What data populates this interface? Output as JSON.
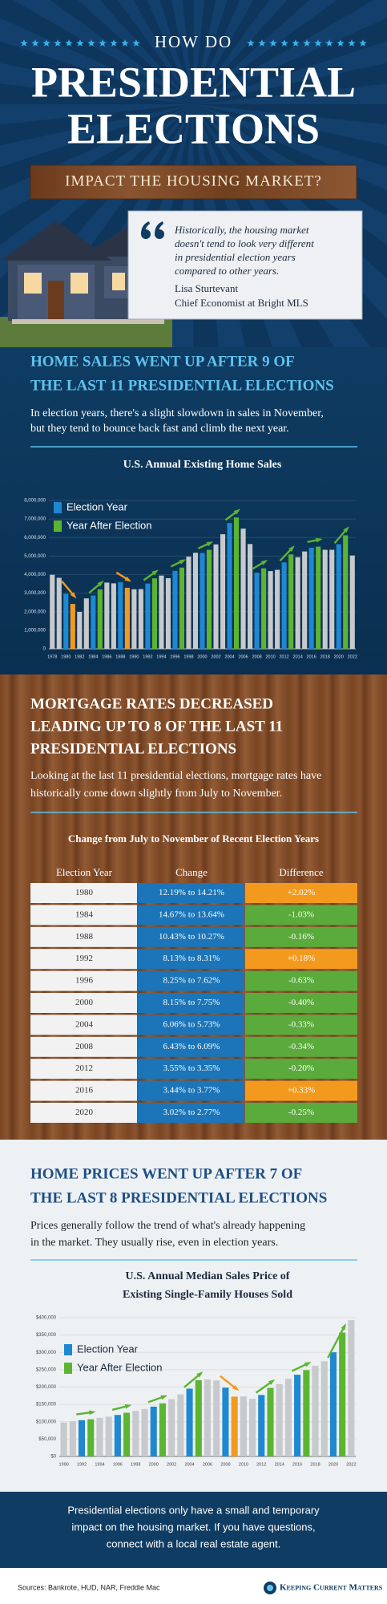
{
  "header": {
    "kicker": "HOW DO",
    "title_lines": [
      "PRESIDENTIAL",
      "ELECTIONS"
    ],
    "banner": "IMPACT THE HOUSING MARKET?",
    "quote_lines": [
      "Historically, the housing market",
      "doesn't tend to look very different",
      "in presidential election years",
      "compared to other years."
    ],
    "author": "Lisa Sturtevant",
    "role": "Chief Economist at Bright MLS"
  },
  "sections": [
    {
      "heading_lines": [
        "HOME SALES WENT UP AFTER 9 OF",
        "THE LAST 11 PRESIDENTIAL ELECTIONS"
      ],
      "paragraph_lines": [
        "In election years, there's a slight slowdown in sales in November,",
        "but they tend to bounce back fast and climb the next year."
      ]
    },
    {
      "heading_lines": [
        "MORTGAGE RATES DECREASED",
        "LEADING UP TO 8 OF THE LAST 11",
        "PRESIDENTIAL ELECTIONS"
      ],
      "paragraph_lines": [
        "Looking at the last 11 presidential elections, mortgage rates have",
        "historically come down slightly from July to November."
      ]
    },
    {
      "heading_lines": [
        "HOME PRICES WENT UP AFTER 7 OF",
        "THE LAST 8 PRESIDENTIAL ELECTIONS"
      ],
      "paragraph_lines": [
        "Prices generally follow the trend of what's already happening",
        "in the market. They usually rise, even in election years."
      ]
    }
  ],
  "chart_data": [
    {
      "type": "bar",
      "title_lines": [
        "U.S. Annual Existing Home Sales"
      ],
      "categories": [
        "1978",
        null,
        "1980",
        null,
        "1982",
        null,
        "1984",
        null,
        "1986",
        null,
        "1988",
        null,
        "1990",
        null,
        "1992",
        null,
        "1994",
        null,
        "1996",
        null,
        "1998",
        null,
        "2000",
        null,
        "2002",
        null,
        "2004",
        null,
        "2006",
        null,
        "2008",
        null,
        "2010",
        null,
        "2012",
        null,
        "2014",
        null,
        "2016",
        null,
        "2018",
        null,
        "2020",
        null,
        "2022"
      ],
      "values": [
        3990000,
        3830000,
        2970000,
        2420000,
        1990000,
        2720000,
        2870000,
        3210000,
        3570000,
        3530000,
        3590000,
        3290000,
        3210000,
        3220000,
        3520000,
        3800000,
        3950000,
        3810000,
        4200000,
        4380000,
        4970000,
        5180000,
        5170000,
        5340000,
        5630000,
        6180000,
        6780000,
        7080000,
        6480000,
        5650000,
        4110000,
        4340000,
        4190000,
        4260000,
        4660000,
        5090000,
        4940000,
        5250000,
        5450000,
        5510000,
        5340000,
        5340000,
        5640000,
        6120000,
        5030000
      ],
      "bar_colors": [
        "#c7c9cc",
        "#c7c9cc",
        "#1e88d0",
        "#f39a1e",
        "#c7c9cc",
        "#c7c9cc",
        "#1e88d0",
        "#5cb531",
        "#c7c9cc",
        "#c7c9cc",
        "#1e88d0",
        "#f39a1e",
        "#c7c9cc",
        "#c7c9cc",
        "#1e88d0",
        "#5cb531",
        "#c7c9cc",
        "#c7c9cc",
        "#1e88d0",
        "#5cb531",
        "#c7c9cc",
        "#c7c9cc",
        "#1e88d0",
        "#5cb531",
        "#c7c9cc",
        "#c7c9cc",
        "#1e88d0",
        "#5cb531",
        "#c7c9cc",
        "#c7c9cc",
        "#1e88d0",
        "#5cb531",
        "#c7c9cc",
        "#c7c9cc",
        "#1e88d0",
        "#5cb531",
        "#c7c9cc",
        "#c7c9cc",
        "#1e88d0",
        "#5cb531",
        "#c7c9cc",
        "#c7c9cc",
        "#1e88d0",
        "#5cb531",
        "#c7c9cc"
      ],
      "legend": [
        {
          "name": "Election Year",
          "color": "#1e88d0"
        },
        {
          "name": "Year After Election",
          "color": "#5cb531"
        }
      ],
      "ylim": [
        0,
        8000000
      ],
      "yticks": [
        0,
        {
          "value": 1000000,
          "label": "1,000,000"
        },
        {
          "value": 2000000,
          "label": "2,000,000"
        },
        {
          "value": 3000000,
          "label": "3,000,000"
        },
        {
          "value": 4000000,
          "label": "4,000,000"
        },
        {
          "value": 5000000,
          "label": "5,000,000"
        },
        {
          "value": 6000000,
          "label": "6,000,000"
        },
        {
          "value": 7000000,
          "label": "7,000,000"
        },
        {
          "value": 8000000,
          "label": "8,000,000"
        }
      ],
      "grid": true
    },
    {
      "type": "bar",
      "title_lines": [
        "U.S. Annual Median Sales Price of",
        "Existing Single-Family Houses Sold"
      ],
      "categories": [
        "1990",
        null,
        "1992",
        null,
        "1994",
        null,
        "1996",
        null,
        "1998",
        null,
        "2000",
        null,
        "2002",
        null,
        "2004",
        null,
        "2006",
        null,
        "2008",
        null,
        "2010",
        null,
        "2012",
        null,
        "2014",
        null,
        "2016",
        null,
        "2018",
        null,
        "2020",
        null,
        "2022"
      ],
      "values": [
        97500,
        101700,
        104500,
        107200,
        111300,
        114600,
        119600,
        126000,
        131200,
        136800,
        143600,
        153100,
        165000,
        178800,
        195400,
        219600,
        221900,
        219000,
        198100,
        172500,
        173100,
        166200,
        177200,
        197400,
        208300,
        223900,
        235500,
        248800,
        261600,
        274600,
        300200,
        357100,
        392800
      ],
      "bar_colors": [
        "#c7c9cc",
        "#c7c9cc",
        "#1e88d0",
        "#5cb531",
        "#c7c9cc",
        "#c7c9cc",
        "#1e88d0",
        "#5cb531",
        "#c7c9cc",
        "#c7c9cc",
        "#1e88d0",
        "#5cb531",
        "#c7c9cc",
        "#c7c9cc",
        "#1e88d0",
        "#5cb531",
        "#c7c9cc",
        "#c7c9cc",
        "#1e88d0",
        "#f39a1e",
        "#c7c9cc",
        "#c7c9cc",
        "#1e88d0",
        "#5cb531",
        "#c7c9cc",
        "#c7c9cc",
        "#1e88d0",
        "#5cb531",
        "#c7c9cc",
        "#c7c9cc",
        "#1e88d0",
        "#5cb531",
        "#c7c9cc"
      ],
      "legend": [
        {
          "name": "Election Year",
          "color": "#1e88d0"
        },
        {
          "name": "Year After Election",
          "color": "#5cb531"
        }
      ],
      "ylim": [
        0,
        400000
      ],
      "yticks": [
        {
          "value": 0,
          "label": "$0"
        },
        {
          "value": 50000,
          "label": "$50,000"
        },
        {
          "value": 100000,
          "label": "$100,000"
        },
        {
          "value": 150000,
          "label": "$150,000"
        },
        {
          "value": 200000,
          "label": "$200,000"
        },
        {
          "value": 250000,
          "label": "$250,000"
        },
        {
          "value": 300000,
          "label": "$300,000"
        },
        {
          "value": 350000,
          "label": "$350,000"
        },
        {
          "value": 400000,
          "label": "$400,000"
        }
      ],
      "grid": true
    }
  ],
  "table": {
    "title": "Change from July to November of Recent Election Years",
    "columns": [
      "Election Year",
      "Change",
      "Difference"
    ],
    "rows": [
      [
        "1980",
        "12.19% to 14.21%",
        "+2.02%"
      ],
      [
        "1984",
        "14.67% to 13.64%",
        "-1.03%"
      ],
      [
        "1988",
        "10.43% to 10.27%",
        "-0.16%"
      ],
      [
        "1992",
        "8.13% to 8.31%",
        "+0.18%"
      ],
      [
        "1996",
        "8.25% to 7.62%",
        "-0.63%"
      ],
      [
        "2000",
        "8.15% to 7.75%",
        "-0.40%"
      ],
      [
        "2004",
        "6.06% to 5.73%",
        "-0.33%"
      ],
      [
        "2008",
        "6.43% to 6.09%",
        "-0.34%"
      ],
      [
        "2012",
        "3.55% to 3.35%",
        "-0.20%"
      ],
      [
        "2016",
        "3.44% to 3.77%",
        "+0.33%"
      ],
      [
        "2020",
        "3.02% to 2.77%",
        "-0.25%"
      ]
    ]
  },
  "footer": {
    "lines": [
      "Presidential elections only have a small and temporary",
      "impact on the housing market. If you have questions,",
      "connect with a local real estate agent."
    ]
  },
  "sources": "Sources: Bankrote, HUD, NAR, Freddie Mac",
  "brand": "Keeping Current Matters"
}
